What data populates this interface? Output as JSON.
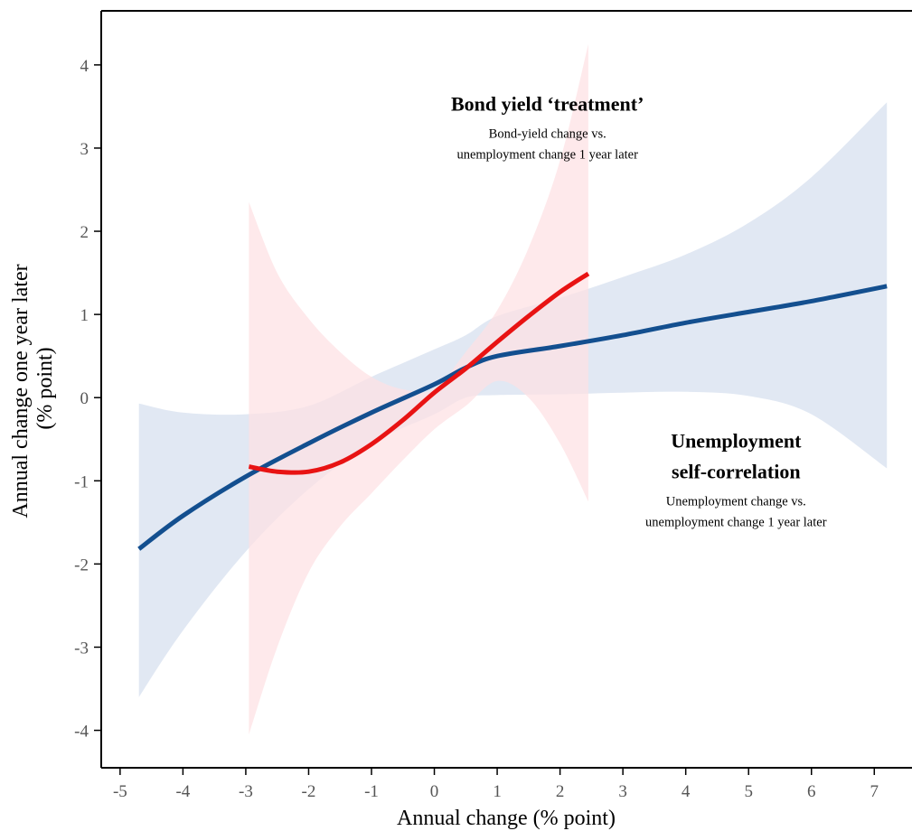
{
  "chart_data": {
    "type": "line",
    "xlabel": "Annual change (% point)",
    "ylabel": [
      "Annual change one year later",
      "(% point)"
    ],
    "xlim": [
      -5.3,
      7.6
    ],
    "ylim": [
      -4.45,
      4.65
    ],
    "x_ticks": [
      -5,
      -4,
      -3,
      -2,
      -1,
      0,
      1,
      2,
      3,
      4,
      5,
      6,
      7
    ],
    "y_ticks": [
      -4,
      -3,
      -2,
      -1,
      0,
      1,
      2,
      3,
      4
    ],
    "grid": false,
    "series": [
      {
        "color": "#134f8f",
        "band_color": "#d5dfee",
        "x": [
          -4.7,
          -4,
          -3,
          -2,
          -1,
          0,
          0.5,
          1,
          2,
          3,
          4,
          5,
          6,
          7.2
        ],
        "y": [
          -1.82,
          -1.42,
          -0.95,
          -0.55,
          -0.18,
          0.16,
          0.36,
          0.5,
          0.62,
          0.75,
          0.9,
          1.03,
          1.16,
          1.34
        ],
        "lower": [
          -3.6,
          -2.8,
          -1.85,
          -1.1,
          -0.55,
          -0.2,
          0.0,
          0.03,
          0.04,
          0.06,
          0.07,
          0.02,
          -0.2,
          -0.85
        ],
        "upper": [
          -0.07,
          -0.18,
          -0.2,
          -0.1,
          0.25,
          0.58,
          0.75,
          0.98,
          1.2,
          1.45,
          1.72,
          2.1,
          2.65,
          3.55
        ]
      },
      {
        "color": "#e81313",
        "band_color": "#fde0e3",
        "x": [
          -2.95,
          -2.5,
          -2,
          -1.5,
          -1,
          -0.5,
          0,
          0.5,
          1,
          1.5,
          2,
          2.45
        ],
        "y": [
          -0.83,
          -0.89,
          -0.89,
          -0.78,
          -0.56,
          -0.27,
          0.06,
          0.35,
          0.67,
          0.98,
          1.27,
          1.49
        ],
        "lower": [
          -4.05,
          -3.0,
          -2.1,
          -1.55,
          -1.15,
          -0.75,
          -0.38,
          -0.1,
          0.2,
          0.0,
          -0.55,
          -1.25
        ],
        "upper": [
          2.35,
          1.5,
          0.95,
          0.55,
          0.25,
          0.1,
          0.1,
          0.55,
          1.05,
          1.8,
          2.85,
          4.25
        ]
      }
    ],
    "annotations": [
      {
        "x": 1.8,
        "y": 3.45,
        "title": [
          "Bond yield ‘treatment’"
        ],
        "subtitle": [
          "Bond-yield change vs.",
          "unemployment change 1 year later"
        ]
      },
      {
        "x": 4.8,
        "y": -0.6,
        "title": [
          "Unemployment",
          "self-correlation"
        ],
        "subtitle": [
          "Unemployment change vs.",
          "unemployment change 1 year later"
        ]
      }
    ]
  }
}
